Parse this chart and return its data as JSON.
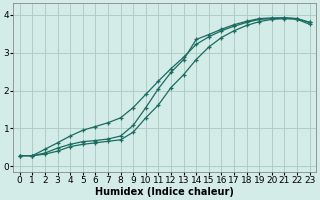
{
  "bg_color": "#d4ece8",
  "grid_color": "#b0cdc8",
  "line_color": "#1a6b60",
  "xlabel": "Humidex (Indice chaleur)",
  "xlabel_fontsize": 7,
  "tick_fontsize": 6.5,
  "xlim": [
    -0.5,
    23.5
  ],
  "ylim": [
    -0.15,
    4.3
  ],
  "yticks": [
    0,
    1,
    2,
    3,
    4
  ],
  "xticks": [
    0,
    1,
    2,
    3,
    4,
    5,
    6,
    7,
    8,
    9,
    10,
    11,
    12,
    13,
    14,
    15,
    16,
    17,
    18,
    19,
    20,
    21,
    22,
    23
  ],
  "line1_x": [
    0,
    1,
    2,
    3,
    4,
    5,
    6,
    7,
    8,
    9,
    10,
    11,
    12,
    13,
    14,
    15,
    16,
    17,
    18,
    19,
    20,
    21,
    22,
    23
  ],
  "line1_y": [
    0.28,
    0.28,
    0.32,
    0.4,
    0.52,
    0.58,
    0.62,
    0.66,
    0.7,
    0.9,
    1.28,
    1.62,
    2.08,
    2.42,
    2.82,
    3.15,
    3.4,
    3.58,
    3.72,
    3.82,
    3.88,
    3.9,
    3.88,
    3.75
  ],
  "line2_x": [
    0,
    1,
    2,
    3,
    4,
    5,
    6,
    7,
    8,
    9,
    10,
    11,
    12,
    13,
    14,
    15,
    16,
    17,
    18,
    19,
    20,
    21,
    22,
    23
  ],
  "line2_y": [
    0.28,
    0.28,
    0.35,
    0.48,
    0.58,
    0.65,
    0.68,
    0.72,
    0.8,
    1.08,
    1.55,
    2.05,
    2.48,
    2.82,
    3.35,
    3.48,
    3.62,
    3.74,
    3.83,
    3.9,
    3.92,
    3.92,
    3.9,
    3.8
  ],
  "line3_x": [
    0,
    1,
    2,
    3,
    4,
    5,
    6,
    7,
    8,
    9,
    10,
    11,
    12,
    13,
    14,
    15,
    16,
    17,
    18,
    19,
    20,
    21,
    22,
    23
  ],
  "line3_y": [
    0.28,
    0.28,
    0.45,
    0.62,
    0.8,
    0.95,
    1.05,
    1.15,
    1.28,
    1.55,
    1.9,
    2.25,
    2.58,
    2.88,
    3.22,
    3.42,
    3.58,
    3.7,
    3.8,
    3.88,
    3.9,
    3.92,
    3.9,
    3.8
  ]
}
